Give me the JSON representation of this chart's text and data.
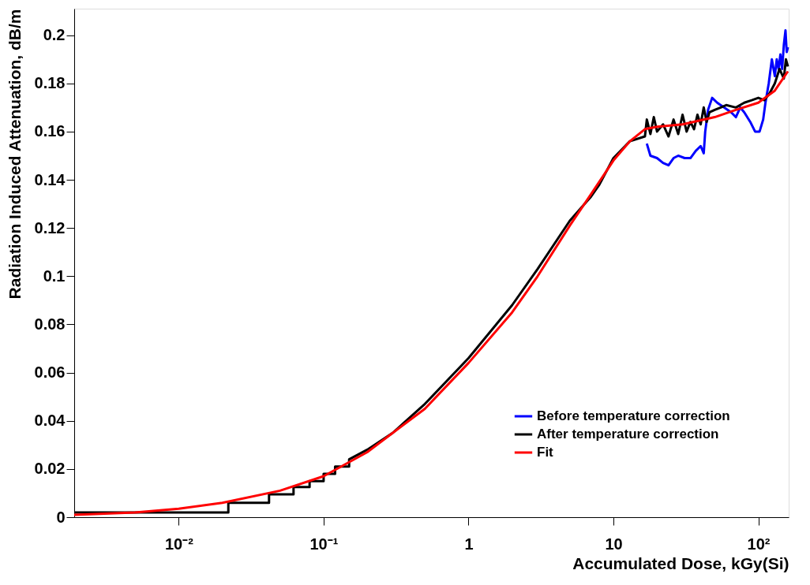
{
  "chart_data": {
    "type": "line",
    "xlabel": "Accumulated Dose, kGy(Si)",
    "ylabel": "Radiation Induced Attenuation, dB/m",
    "log": "x",
    "grid": false,
    "legend": "bottom right",
    "marker": "none",
    "line_style": "solid",
    "xlim": [
      0.0019,
      162
    ],
    "ylim": [
      0,
      0.211
    ],
    "xticks": [
      {
        "value": 0.01,
        "label": "10⁻²"
      },
      {
        "value": 0.1,
        "label": "10⁻¹"
      },
      {
        "value": 1,
        "label": "1"
      },
      {
        "value": 10,
        "label": "10"
      },
      {
        "value": 100,
        "label": "10²"
      }
    ],
    "yticks": [
      0,
      0.02,
      0.04,
      0.06,
      0.08,
      0.1,
      0.12,
      0.14,
      0.16,
      0.18,
      0.2
    ],
    "series": [
      {
        "name": "Before temperature correction",
        "color": "#0000ff",
        "x": [
          17,
          18,
          20,
          22,
          24,
          26,
          28,
          31,
          34,
          37,
          40,
          42,
          43,
          45,
          48,
          52,
          58,
          65,
          70,
          75,
          80,
          88,
          95,
          102,
          108,
          112,
          118,
          124,
          130,
          134,
          138,
          142,
          146,
          150,
          154,
          157,
          160
        ],
        "values": [
          0.155,
          0.15,
          0.149,
          0.147,
          0.146,
          0.149,
          0.15,
          0.149,
          0.149,
          0.152,
          0.154,
          0.151,
          0.16,
          0.169,
          0.174,
          0.172,
          0.17,
          0.168,
          0.166,
          0.17,
          0.168,
          0.164,
          0.16,
          0.16,
          0.165,
          0.172,
          0.18,
          0.19,
          0.183,
          0.19,
          0.186,
          0.192,
          0.186,
          0.196,
          0.202,
          0.193,
          0.195
        ]
      },
      {
        "name": "After temperature correction",
        "color": "#000000",
        "x": [
          0.0019,
          0.022,
          0.022,
          0.042,
          0.042,
          0.062,
          0.062,
          0.08,
          0.08,
          0.1,
          0.1,
          0.12,
          0.12,
          0.15,
          0.15,
          0.2,
          0.3,
          0.5,
          1,
          2,
          3,
          5,
          7,
          8,
          10,
          13,
          16.5,
          17,
          18,
          19,
          20,
          22,
          24,
          26,
          28,
          30,
          32,
          34,
          36,
          38,
          40,
          42,
          44,
          46,
          50,
          55,
          60,
          70,
          80,
          90,
          100,
          110,
          120,
          130,
          140,
          150,
          155,
          160
        ],
        "values": [
          0.002,
          0.002,
          0.006,
          0.006,
          0.0095,
          0.0095,
          0.0125,
          0.0125,
          0.015,
          0.015,
          0.018,
          0.018,
          0.021,
          0.021,
          0.024,
          0.028,
          0.035,
          0.047,
          0.066,
          0.088,
          0.103,
          0.123,
          0.133,
          0.138,
          0.149,
          0.156,
          0.158,
          0.165,
          0.159,
          0.166,
          0.16,
          0.163,
          0.158,
          0.165,
          0.159,
          0.167,
          0.16,
          0.164,
          0.161,
          0.167,
          0.163,
          0.17,
          0.164,
          0.168,
          0.169,
          0.17,
          0.171,
          0.17,
          0.172,
          0.173,
          0.174,
          0.173,
          0.176,
          0.18,
          0.186,
          0.182,
          0.19,
          0.187
        ]
      },
      {
        "name": "Fit",
        "color": "#ff0000",
        "x": [
          0.0019,
          0.005,
          0.01,
          0.02,
          0.05,
          0.1,
          0.2,
          0.5,
          1,
          2,
          3,
          5,
          7,
          10,
          13,
          16.5,
          20,
          30,
          50,
          70,
          100,
          130,
          160
        ],
        "values": [
          0.001,
          0.002,
          0.0035,
          0.006,
          0.011,
          0.017,
          0.027,
          0.045,
          0.064,
          0.085,
          0.1,
          0.121,
          0.134,
          0.148,
          0.156,
          0.161,
          0.162,
          0.163,
          0.166,
          0.169,
          0.172,
          0.177,
          0.185
        ]
      }
    ]
  }
}
